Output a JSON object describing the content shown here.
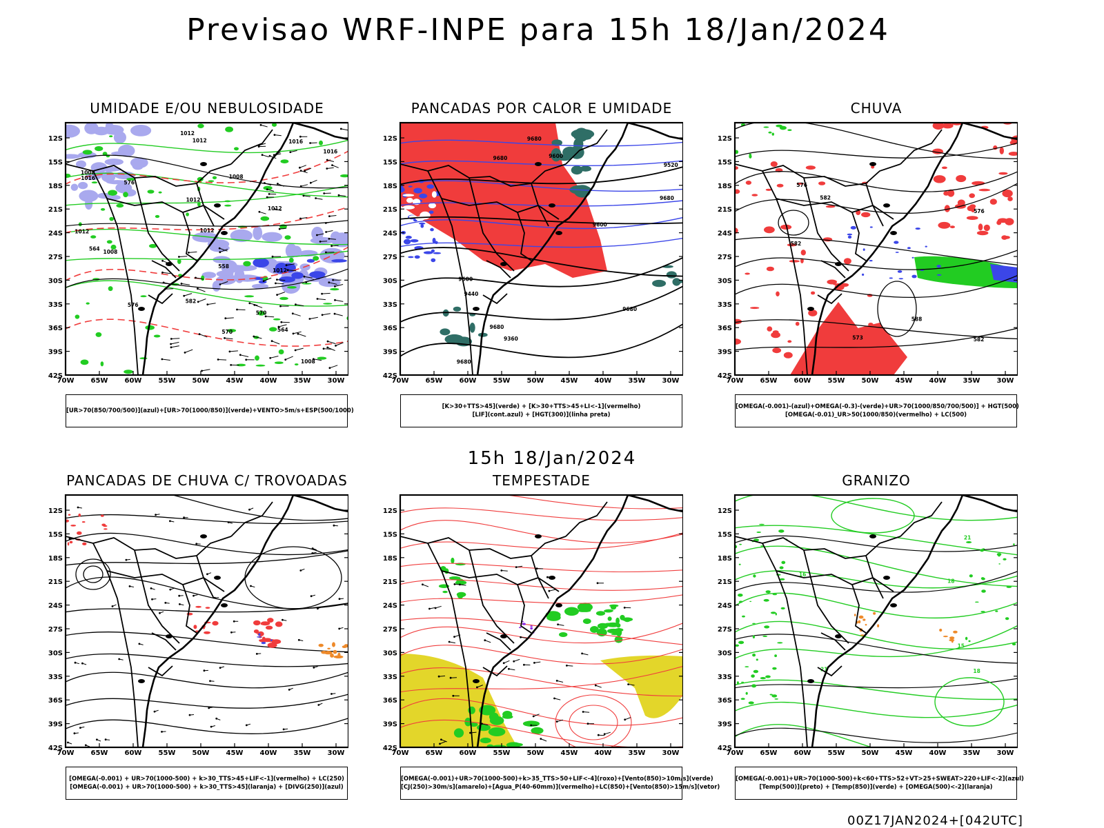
{
  "title": "Previsao WRF-INPE  para 15h 18/Jan/2024",
  "mid_date": "15h 18/Jan/2024",
  "footer": "00Z17JAN2024+[042UTC]",
  "lat_ticks": [
    "12S",
    "15S",
    "18S",
    "21S",
    "24S",
    "27S",
    "30S",
    "33S",
    "36S",
    "39S",
    "42S"
  ],
  "lon_ticks": [
    "70W",
    "65W",
    "60W",
    "55W",
    "50W",
    "45W",
    "40W",
    "35W",
    "30W"
  ],
  "colors": {
    "blue": "#3b46e8",
    "lightblue": "#a9a9ee",
    "green": "#22cc22",
    "red": "#f03c3c",
    "teal": "#2f6e66",
    "yellow": "#e3d62a",
    "orange": "#ee8a2a"
  },
  "panels": [
    {
      "id": "umidade",
      "title": "UMIDADE E/OU NEBULOSIDADE",
      "legend": [
        "[UR>70(850/700/500)](azul)+[UR>70(1000/850)](verde)+VENTO>5m/s+ESP(500/1000)"
      ],
      "labels": [
        "1012",
        "1012",
        "1012",
        "1016",
        "1008",
        "1008",
        "1008",
        "1008",
        "1012",
        "1016",
        "1012",
        "1012",
        "1012",
        "1016",
        "576",
        "576",
        "570",
        "564",
        "558",
        "582",
        "570",
        "564"
      ]
    },
    {
      "id": "pancadas",
      "title": "PANCADAS POR CALOR E UMIDADE",
      "legend": [
        "[K>30+TTS>45](verde) + [K>30+TTS>45+LI<-1](vermelho)",
        "[LIF](cont.azul) + [HGT(300)](linha preta)"
      ],
      "labels": [
        "9680",
        "9680",
        "9680",
        "9680",
        "9680",
        "9600",
        "9600",
        "9600",
        "9520",
        "9440",
        "9360",
        "9680"
      ]
    },
    {
      "id": "chuva",
      "title": "CHUVA",
      "legend": [
        "[OMEGA(-0.001)-(azul)+OMEGA(-0.3)-(verde)+UR>70(1000/850/700/500)] + HGT(500)",
        "[OMEGA(-0.01)_UR>50(1000/850)(vermelho) + LC(500)"
      ],
      "labels": [
        "588",
        "582",
        "576",
        "573",
        "582",
        "576",
        "582"
      ]
    },
    {
      "id": "trovoadas",
      "title": "PANCADAS DE CHUVA C/ TROVOADAS",
      "legend": [
        "[OMEGA(-0.001) + UR>70(1000-500) + k>30_TTS>45+LIF<-1](vermelho) + LC(250)",
        "[OMEGA(-0.001) + UR>70(1000-500) + k>30_TTS>45](laranja) + [DIVG(250)](azul)"
      ],
      "labels": []
    },
    {
      "id": "tempestade",
      "title": "TEMPESTADE",
      "legend": [
        "[OMEGA(-0.001)+UR>70(1000-500)+k>35_TTS>50+LIF<-4](roxo)+[Vento(850)>10m/s](verde)",
        "[CJ(250)>30m/s](amarelo)+[Agua_P(40-60mm)](vermelho)+LC(850)+[Vento(850)>15m/s](vetor)"
      ],
      "labels": []
    },
    {
      "id": "granizo",
      "title": "GRANIZO",
      "legend": [
        "[OMEGA(-0.001)+UR>70(1000-500)+k<60+TTS>52+VT>25+SWEAT>220+LIF<-2](azul)",
        "[Temp(500)](preto) + [Temp(850)](verde) + [OMEGA(500)<-2](laranja)"
      ],
      "labels": [
        "18",
        "21",
        "16",
        "15",
        "18",
        "21"
      ]
    }
  ]
}
